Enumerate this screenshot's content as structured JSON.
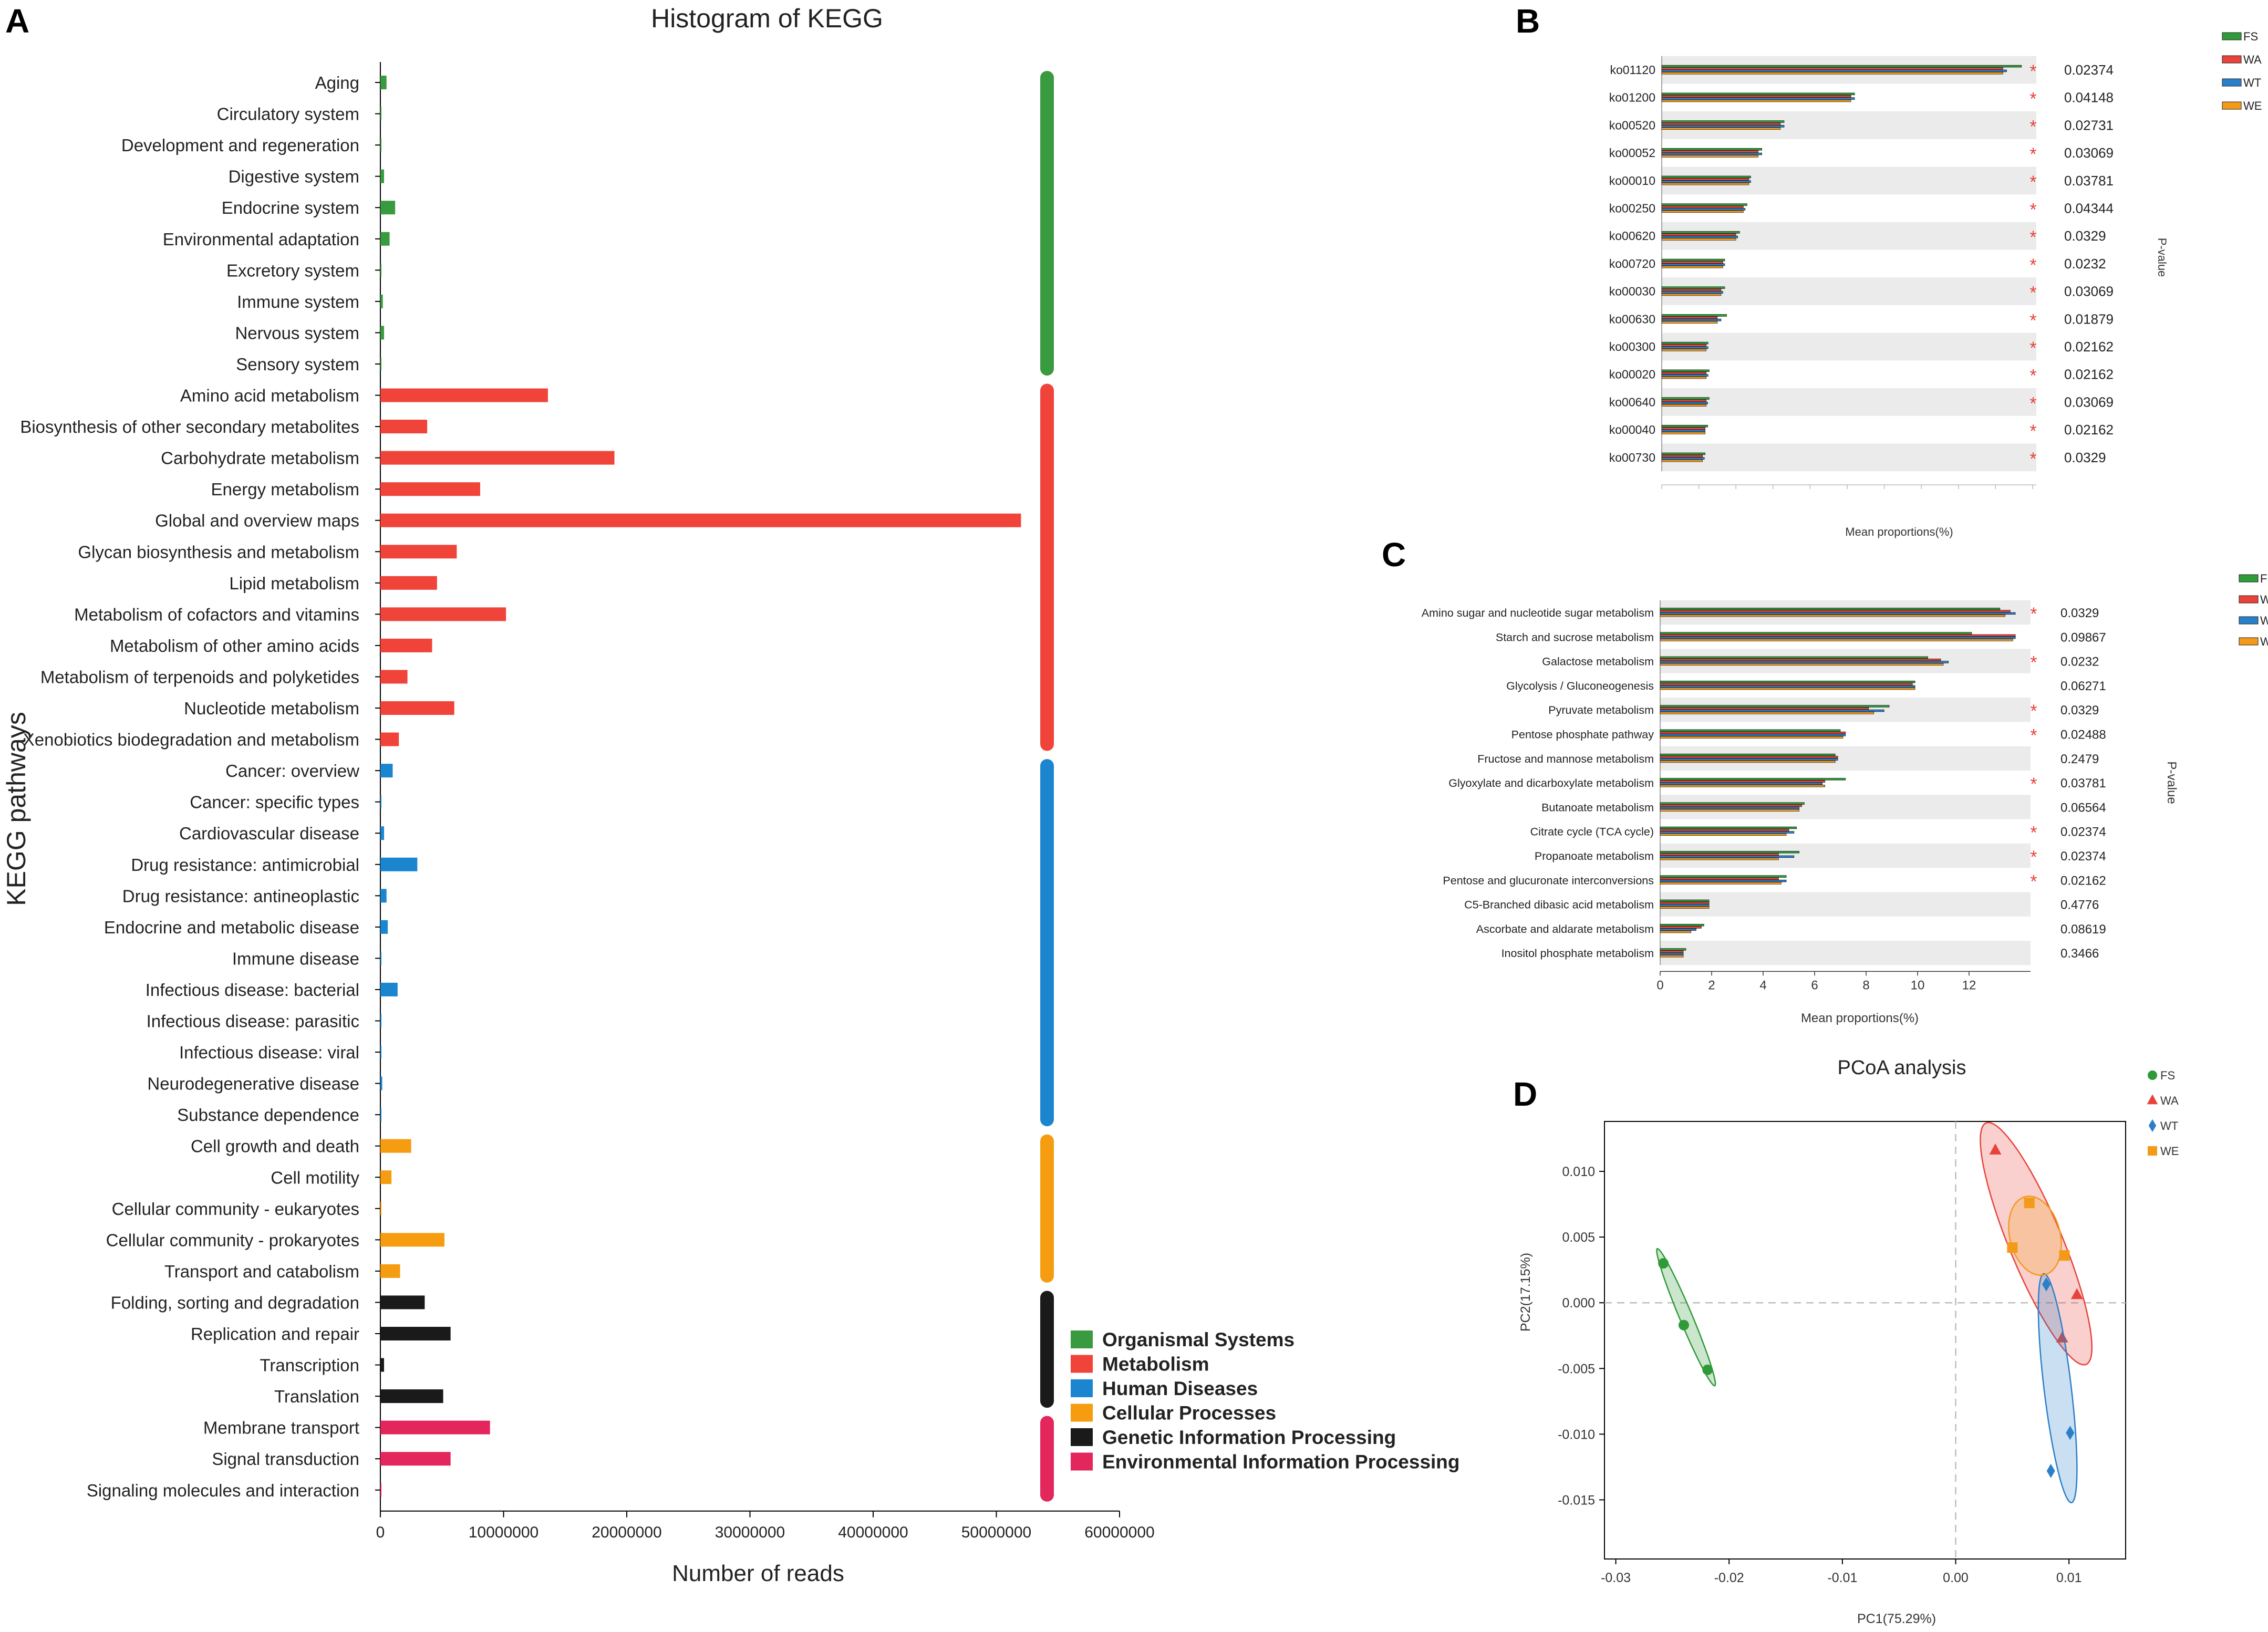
{
  "panel_letters": {
    "a": "A",
    "b": "B",
    "c": "C",
    "d": "D"
  },
  "category_colors": {
    "organismal": "#3a9a3f",
    "metabolism": "#f0433a",
    "disease": "#1b86cf",
    "cellular": "#f59c10",
    "genetic": "#1a1a1a",
    "environmental": "#e3265c"
  },
  "group_colors": {
    "FS": "#2e9a38",
    "WA": "#e8423b",
    "WT": "#2a7fca",
    "WE": "#f39a1a"
  },
  "chart_data": [
    {
      "id": "A",
      "type": "bar",
      "orientation": "horizontal",
      "title": "Histogram of KEGG",
      "xlabel": "Number of reads",
      "ylabel": "KEGG pathways",
      "xlim": [
        0,
        60000000
      ],
      "x_ticks": [
        0,
        10000000,
        20000000,
        30000000,
        40000000,
        50000000,
        60000000
      ],
      "x_tick_labels": [
        "0",
        "10000000",
        "20000000",
        "30000000",
        "40000000",
        "50000000",
        "60000000"
      ],
      "categories": [
        "Aging",
        "Circulatory system",
        "Development and regeneration",
        "Digestive system",
        "Endocrine system",
        "Environmental adaptation",
        "Excretory system",
        "Immune system",
        "Nervous system",
        "Sensory system",
        "Amino acid metabolism",
        "Biosynthesis of other secondary metabolites",
        "Carbohydrate metabolism",
        "Energy metabolism",
        "Global and overview maps",
        "Glycan biosynthesis and metabolism",
        "Lipid metabolism",
        "Metabolism of cofactors and vitamins",
        "Metabolism of other amino acids",
        "Metabolism of terpenoids and polyketides",
        "Nucleotide metabolism",
        "Xenobiotics biodegradation and metabolism",
        "Cancer: overview",
        "Cancer: specific types",
        "Cardiovascular disease",
        "Drug resistance: antimicrobial",
        "Drug resistance: antineoplastic",
        "Endocrine and metabolic disease",
        "Immune disease",
        "Infectious disease: bacterial",
        "Infectious disease: parasitic",
        "Infectious disease: viral",
        "Neurodegenerative disease",
        "Substance dependence",
        "Cell growth and death",
        "Cell motility",
        "Cellular community - eukaryotes",
        "Cellular community - prokaryotes",
        "Transport and catabolism",
        "Folding, sorting and degradation",
        "Replication and repair",
        "Transcription",
        "Translation",
        "Membrane transport",
        "Signal transduction",
        "Signaling molecules and interaction"
      ],
      "values": [
        500000,
        30000,
        80000,
        300000,
        1200000,
        750000,
        30000,
        200000,
        300000,
        20000,
        13600000,
        3800000,
        19000000,
        8100000,
        52000000,
        6200000,
        4600000,
        10200000,
        4200000,
        2200000,
        6000000,
        1500000,
        1000000,
        50000,
        300000,
        3000000,
        500000,
        600000,
        30000,
        1400000,
        50000,
        50000,
        150000,
        50000,
        2500000,
        900000,
        50000,
        5200000,
        1600000,
        3600000,
        5700000,
        300000,
        5100000,
        8900000,
        5700000,
        10000
      ],
      "groups": [
        "organismal",
        "organismal",
        "organismal",
        "organismal",
        "organismal",
        "organismal",
        "organismal",
        "organismal",
        "organismal",
        "organismal",
        "metabolism",
        "metabolism",
        "metabolism",
        "metabolism",
        "metabolism",
        "metabolism",
        "metabolism",
        "metabolism",
        "metabolism",
        "metabolism",
        "metabolism",
        "metabolism",
        "disease",
        "disease",
        "disease",
        "disease",
        "disease",
        "disease",
        "disease",
        "disease",
        "disease",
        "disease",
        "disease",
        "disease",
        "cellular",
        "cellular",
        "cellular",
        "cellular",
        "cellular",
        "genetic",
        "genetic",
        "genetic",
        "genetic",
        "environmental",
        "environmental",
        "environmental"
      ],
      "legend": [
        {
          "key": "organismal",
          "label": "Organismal Systems"
        },
        {
          "key": "metabolism",
          "label": "Metabolism"
        },
        {
          "key": "disease",
          "label": "Human Diseases"
        },
        {
          "key": "cellular",
          "label": "Cellular Processes"
        },
        {
          "key": "genetic",
          "label": "Genetic Information Processing"
        },
        {
          "key": "environmental",
          "label": "Environmental Information Processing"
        }
      ]
    },
    {
      "id": "B",
      "type": "bar",
      "orientation": "horizontal",
      "xlabel": "Mean proportions(%)",
      "pvalue_label": "P-value",
      "xlim": [
        0,
        100
      ],
      "x_ticks": [
        0,
        10,
        20,
        30,
        40,
        50,
        60,
        70,
        80,
        90,
        100
      ],
      "x_tick_labels": [],
      "categories": [
        "ko01120",
        "ko01200",
        "ko00520",
        "ko00052",
        "ko00010",
        "ko00250",
        "ko00620",
        "ko00720",
        "ko00030",
        "ko00630",
        "ko00300",
        "ko00020",
        "ko00640",
        "ko00040",
        "ko00730"
      ],
      "series": [
        {
          "name": "FS",
          "values": [
            97,
            52,
            33,
            27,
            24,
            23,
            21,
            17,
            17,
            17.5,
            12.5,
            12.8,
            12.8,
            12.4,
            11.7
          ]
        },
        {
          "name": "WA",
          "values": [
            92,
            51,
            32,
            26,
            23.5,
            22,
            20,
            16.5,
            16,
            15,
            12,
            12,
            12,
            11.7,
            11
          ]
        },
        {
          "name": "WT",
          "values": [
            93,
            52,
            33,
            27,
            24,
            22.5,
            20.5,
            17,
            16.5,
            16,
            12.5,
            12.5,
            12.4,
            11.7,
            11.5
          ]
        },
        {
          "name": "WE",
          "values": [
            92,
            51,
            32,
            26,
            23.5,
            22,
            20,
            16.5,
            16,
            15,
            12,
            12,
            12,
            11.7,
            11
          ]
        }
      ],
      "significant": [
        "*",
        "*",
        "*",
        "*",
        "*",
        "*",
        "*",
        "*",
        "*",
        "*",
        "*",
        "*",
        "*",
        "*",
        "*"
      ],
      "p_values": [
        "0.02374",
        "0.04148",
        "0.02731",
        "0.03069",
        "0.03781",
        "0.04344",
        "0.0329",
        "0.0232",
        "0.03069",
        "0.01879",
        "0.02162",
        "0.02162",
        "0.03069",
        "0.02162",
        "0.0329"
      ]
    },
    {
      "id": "C",
      "type": "bar",
      "orientation": "horizontal",
      "xlabel": "Mean proportions(%)",
      "pvalue_label": "P-value",
      "xlim": [
        0,
        14
      ],
      "x_ticks": [
        0,
        2,
        4,
        6,
        8,
        10,
        12
      ],
      "x_tick_labels": [
        "0",
        "2",
        "4",
        "6",
        "8",
        "10",
        "12"
      ],
      "categories": [
        "Amino sugar and nucleotide sugar metabolism",
        "Starch and sucrose metabolism",
        "Galactose metabolism",
        "Glycolysis / Gluconeogenesis",
        "Pyruvate metabolism",
        "Pentose phosphate pathway",
        "Fructose and mannose metabolism",
        "Glyoxylate and dicarboxylate metabolism",
        "Butanoate metabolism",
        "Citrate cycle (TCA cycle)",
        "Propanoate metabolism",
        "Pentose and glucuronate interconversions",
        "C5-Branched dibasic acid metabolism",
        "Ascorbate and aldarate metabolism",
        "Inositol phosphate metabolism"
      ],
      "series": [
        {
          "name": "FS",
          "values": [
            13.2,
            12.1,
            10.4,
            9.9,
            8.9,
            7.0,
            6.8,
            7.2,
            5.6,
            5.3,
            5.4,
            4.9,
            1.9,
            1.7,
            1.0
          ]
        },
        {
          "name": "WA",
          "values": [
            13.6,
            13.8,
            10.9,
            9.8,
            8.1,
            7.2,
            6.9,
            6.4,
            5.5,
            5.0,
            4.6,
            4.6,
            1.9,
            1.6,
            0.9
          ]
        },
        {
          "name": "WT",
          "values": [
            13.8,
            13.8,
            11.2,
            9.9,
            8.7,
            7.2,
            6.9,
            6.3,
            5.4,
            5.2,
            5.2,
            4.9,
            1.9,
            1.4,
            0.9
          ]
        },
        {
          "name": "WE",
          "values": [
            13.4,
            13.7,
            11.0,
            9.9,
            8.3,
            7.1,
            6.8,
            6.4,
            5.4,
            4.9,
            4.6,
            4.7,
            1.9,
            1.2,
            0.9
          ]
        }
      ],
      "significant": [
        "*",
        "",
        "*",
        "",
        "*",
        "*",
        "",
        "*",
        "",
        "*",
        "*",
        "*",
        "",
        "",
        ""
      ],
      "p_values": [
        "0.0329",
        "0.09867",
        "0.0232",
        "0.06271",
        "0.0329",
        "0.02488",
        "0.2479",
        "0.03781",
        "0.06564",
        "0.02374",
        "0.02374",
        "0.02162",
        "0.4776",
        "0.08619",
        "0.3466"
      ]
    },
    {
      "id": "D",
      "type": "scatter",
      "title": "PCoA analysis",
      "xlabel": "PC1(75.29%)",
      "ylabel": "PC2(17.15%)",
      "xlim": [
        -0.031,
        0.015
      ],
      "ylim": [
        -0.0195,
        0.0138
      ],
      "x_ticks": [
        -0.03,
        -0.02,
        -0.01,
        0,
        0.01
      ],
      "x_tick_labels": [
        "-0.03",
        "-0.02",
        "-0.01",
        "0.00",
        "0.01"
      ],
      "y_ticks": [
        0.01,
        0.005,
        0,
        -0.005,
        -0.01,
        -0.015
      ],
      "y_tick_labels": [
        "0.010",
        "0.005",
        "0.000",
        "-0.005",
        "-0.010",
        "-0.015"
      ],
      "series": [
        {
          "name": "FS",
          "marker": "circle",
          "points": [
            [
              -0.0258,
              0.003
            ],
            [
              -0.024,
              -0.0017
            ],
            [
              -0.0219,
              -0.0051
            ]
          ],
          "ellipse": {
            "cx": -0.0238,
            "cy": -0.0011,
            "rx": 0.0058,
            "ry": 0.00055,
            "angle_deg": -64
          }
        },
        {
          "name": "WA",
          "marker": "triangle",
          "points": [
            [
              0.0035,
              0.0116
            ],
            [
              0.0107,
              0.0006
            ],
            [
              0.0094,
              -0.0027
            ]
          ],
          "ellipse": {
            "cx": 0.0071,
            "cy": 0.0045,
            "rx": 0.0102,
            "ry": 0.0023,
            "angle_deg": -64
          }
        },
        {
          "name": "WT",
          "marker": "diamond",
          "points": [
            [
              0.008,
              0.0014
            ],
            [
              0.0101,
              -0.0099
            ],
            [
              0.0084,
              -0.0128
            ]
          ],
          "ellipse": {
            "cx": 0.009,
            "cy": -0.0065,
            "rx": 0.0088,
            "ry": 0.0012,
            "angle_deg": -82
          }
        },
        {
          "name": "WE",
          "marker": "square",
          "points": [
            [
              0.0065,
              0.0076
            ],
            [
              0.0096,
              0.0036
            ],
            [
              0.005,
              0.0042
            ]
          ],
          "ellipse": {
            "cx": 0.007,
            "cy": 0.0051,
            "rx": 0.0031,
            "ry": 0.0022,
            "angle_deg": -70
          }
        }
      ]
    }
  ]
}
